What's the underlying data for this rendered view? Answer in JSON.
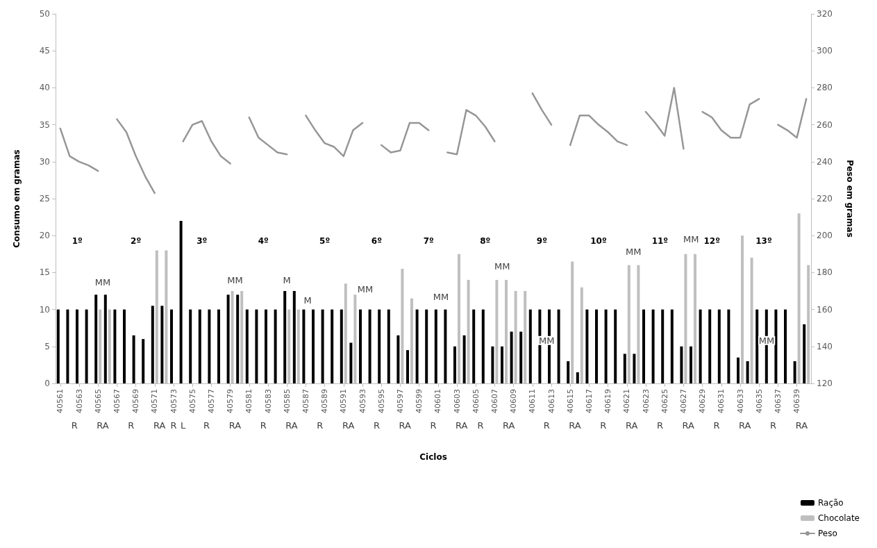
{
  "chart_data": {
    "type": "bar",
    "xlabel": "Ciclos",
    "ylabel": "Consumo em gramas",
    "y2label": "Peso em gramas",
    "x": [
      40561,
      40562,
      40563,
      40564,
      40565,
      40566,
      40567,
      40568,
      40569,
      40570,
      40571,
      40572,
      40573,
      40574,
      40575,
      40576,
      40577,
      40578,
      40579,
      40580,
      40581,
      40582,
      40583,
      40584,
      40585,
      40586,
      40587,
      40588,
      40589,
      40590,
      40591,
      40592,
      40593,
      40594,
      40595,
      40596,
      40597,
      40598,
      40599,
      40600,
      40601,
      40602,
      40603,
      40604,
      40605,
      40606,
      40607,
      40608,
      40609,
      40610,
      40611,
      40612,
      40613,
      40614,
      40615,
      40616,
      40617,
      40618,
      40619,
      40620,
      40621,
      40622,
      40623,
      40624,
      40625,
      40626,
      40627,
      40628,
      40629,
      40630,
      40631,
      40632,
      40633,
      40634,
      40635,
      40636,
      40637,
      40638,
      40639,
      40640
    ],
    "xlim": [
      40560.5,
      40640.5
    ],
    "xticks": [
      40561,
      40563,
      40565,
      40567,
      40569,
      40571,
      40573,
      40575,
      40577,
      40579,
      40581,
      40583,
      40585,
      40587,
      40589,
      40591,
      40593,
      40595,
      40597,
      40599,
      40601,
      40603,
      40605,
      40607,
      40609,
      40611,
      40613,
      40615,
      40617,
      40619,
      40621,
      40623,
      40625,
      40627,
      40629,
      40631,
      40633,
      40635,
      40637,
      40639
    ],
    "ylim": [
      0,
      50
    ],
    "yticks": [
      0,
      5,
      10,
      15,
      20,
      25,
      30,
      35,
      40,
      45,
      50
    ],
    "y2lim": [
      120,
      320
    ],
    "y2ticks": [
      120,
      140,
      160,
      180,
      200,
      220,
      240,
      260,
      280,
      300,
      320
    ],
    "grid": false,
    "legend": "bottom right",
    "series": [
      {
        "name": "Ração",
        "color": "#000000",
        "values": [
          10,
          10,
          10,
          10,
          12,
          12,
          10,
          10,
          6.5,
          6,
          10.5,
          10.5,
          10,
          22,
          10,
          10,
          10,
          10,
          12,
          12,
          10,
          10,
          10,
          10,
          12.5,
          12.5,
          10,
          10,
          10,
          10,
          10,
          5.5,
          10,
          10,
          10,
          10,
          6.5,
          4.5,
          10,
          10,
          10,
          10,
          5,
          6.5,
          10,
          10,
          5,
          5,
          7,
          7,
          10,
          10,
          10,
          10,
          3,
          1.5,
          10,
          10,
          10,
          10,
          4,
          4,
          10,
          10,
          10,
          10,
          5,
          5,
          10,
          10,
          10,
          10,
          3.5,
          3,
          10,
          10,
          10,
          10,
          3,
          8
        ]
      },
      {
        "name": "Chocolate",
        "color": "#bfbfbf",
        "values": [
          null,
          null,
          null,
          null,
          10,
          10,
          null,
          null,
          null,
          null,
          18,
          18,
          null,
          null,
          null,
          null,
          null,
          null,
          12.5,
          12.5,
          null,
          null,
          null,
          null,
          10,
          10,
          null,
          null,
          null,
          null,
          13.5,
          12,
          null,
          null,
          null,
          null,
          15.5,
          11.5,
          null,
          null,
          null,
          null,
          17.5,
          14,
          null,
          null,
          14,
          14,
          12.5,
          12.5,
          null,
          null,
          null,
          null,
          16.5,
          13,
          null,
          null,
          null,
          null,
          16,
          16,
          null,
          null,
          null,
          null,
          17.5,
          17.5,
          null,
          null,
          null,
          null,
          20,
          17,
          null,
          null,
          null,
          null,
          23,
          16
        ]
      },
      {
        "name": "Peso",
        "type": "line",
        "axis": "y2",
        "color": "#969696",
        "marker": "none",
        "line_style": "solid",
        "values": [
          258,
          243,
          240,
          238,
          235,
          null,
          263,
          256,
          243,
          232,
          223,
          null,
          null,
          251,
          260,
          262,
          251,
          243,
          239,
          null,
          264,
          253,
          249,
          245,
          244,
          null,
          265,
          257,
          250,
          248,
          243,
          257,
          261,
          null,
          249,
          245,
          246,
          261,
          261,
          257,
          null,
          245,
          244,
          268,
          265,
          259,
          251,
          null,
          null,
          null,
          277,
          268,
          260,
          null,
          249,
          265,
          265,
          260,
          256,
          251,
          249,
          null,
          267,
          261,
          254,
          280,
          247,
          null,
          267,
          264,
          257,
          253,
          253,
          271,
          274,
          null,
          260,
          257,
          253,
          274
        ]
      }
    ],
    "annotations": [
      "1º",
      "2º",
      "3º",
      "4º",
      "5º",
      "6º",
      "7º",
      "8º",
      "9º",
      "10º",
      "11º",
      "12º",
      "13º",
      "MM",
      "MM",
      "M",
      "M",
      "MM",
      "MM",
      "MM",
      "MM",
      "MM",
      "MM",
      "MM",
      "R",
      "RA",
      "R",
      "RA",
      "R",
      "L",
      "R",
      "RA",
      "R",
      "RA",
      "R",
      "RA",
      "R",
      "RA",
      "R",
      "RA",
      "R",
      "RA",
      "R",
      "RA",
      "R",
      "RA",
      "R",
      "RA",
      "R",
      "RA",
      "R",
      "RA"
    ]
  }
}
